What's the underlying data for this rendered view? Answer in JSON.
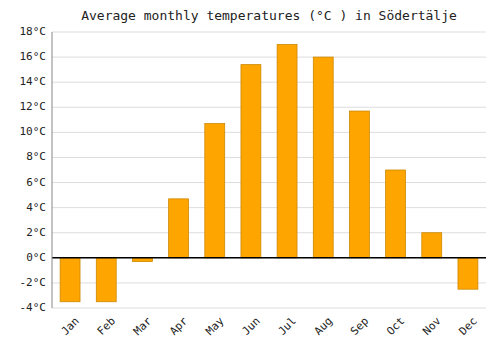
{
  "chart_data": {
    "type": "bar",
    "title": "Average monthly temperatures (°C ) in Södertälje",
    "categories": [
      "Jan",
      "Feb",
      "Mar",
      "Apr",
      "May",
      "Jun",
      "Jul",
      "Aug",
      "Sep",
      "Oct",
      "Nov",
      "Dec"
    ],
    "values": [
      -3.5,
      -3.5,
      -0.3,
      4.7,
      10.7,
      15.4,
      17.0,
      16.0,
      11.7,
      7.0,
      2.0,
      -2.5
    ],
    "color": "#FFA500",
    "ylim": [
      -4,
      18
    ],
    "yticks": [
      {
        "value": -4,
        "label": "-4°C"
      },
      {
        "value": -2,
        "label": "-2°C"
      },
      {
        "value": 0,
        "label": "0°C"
      },
      {
        "value": 2,
        "label": "2°C"
      },
      {
        "value": 4,
        "label": "4°C"
      },
      {
        "value": 6,
        "label": "6°C"
      },
      {
        "value": 8,
        "label": "8°C"
      },
      {
        "value": 10,
        "label": "10°C"
      },
      {
        "value": 12,
        "label": "12°C"
      },
      {
        "value": 14,
        "label": "14°C"
      },
      {
        "value": 16,
        "label": "16°C"
      },
      {
        "value": 18,
        "label": "18°C"
      }
    ],
    "grid": true
  }
}
